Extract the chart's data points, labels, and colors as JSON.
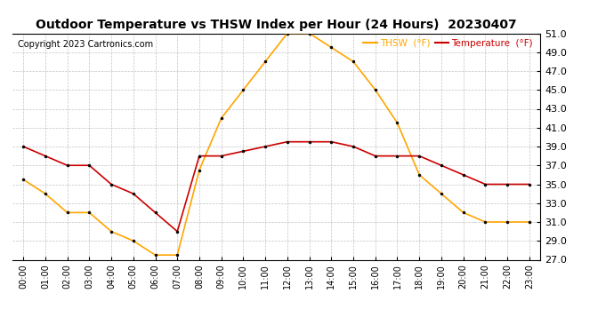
{
  "title": "Outdoor Temperature vs THSW Index per Hour (24 Hours)  20230407",
  "copyright": "Copyright 2023 Cartronics.com",
  "legend_thsw": "THSW  (°F)",
  "legend_temp": "Temperature  (°F)",
  "hours": [
    "00:00",
    "01:00",
    "02:00",
    "03:00",
    "04:00",
    "05:00",
    "06:00",
    "07:00",
    "08:00",
    "09:00",
    "10:00",
    "11:00",
    "12:00",
    "13:00",
    "14:00",
    "15:00",
    "16:00",
    "17:00",
    "18:00",
    "19:00",
    "20:00",
    "21:00",
    "22:00",
    "23:00"
  ],
  "temperature": [
    39.0,
    38.0,
    37.0,
    37.0,
    35.0,
    34.0,
    32.0,
    30.0,
    38.0,
    38.0,
    38.5,
    39.0,
    39.5,
    39.5,
    39.5,
    39.0,
    38.0,
    38.0,
    38.0,
    37.0,
    36.0,
    35.0,
    35.0,
    35.0
  ],
  "thsw": [
    35.5,
    34.0,
    32.0,
    32.0,
    30.0,
    29.0,
    27.5,
    27.5,
    36.5,
    42.0,
    45.0,
    48.0,
    51.0,
    51.0,
    49.5,
    48.0,
    45.0,
    41.5,
    36.0,
    34.0,
    32.0,
    31.0,
    31.0,
    31.0
  ],
  "thsw_color": "#FFA500",
  "temp_color": "#CC0000",
  "title_color": "#000000",
  "copyright_color": "#000000",
  "background_color": "#FFFFFF",
  "grid_color": "#AAAAAA",
  "ylim_min": 27.0,
  "ylim_max": 51.0,
  "ytick_step": 2.0,
  "ytick_start": 27.0
}
